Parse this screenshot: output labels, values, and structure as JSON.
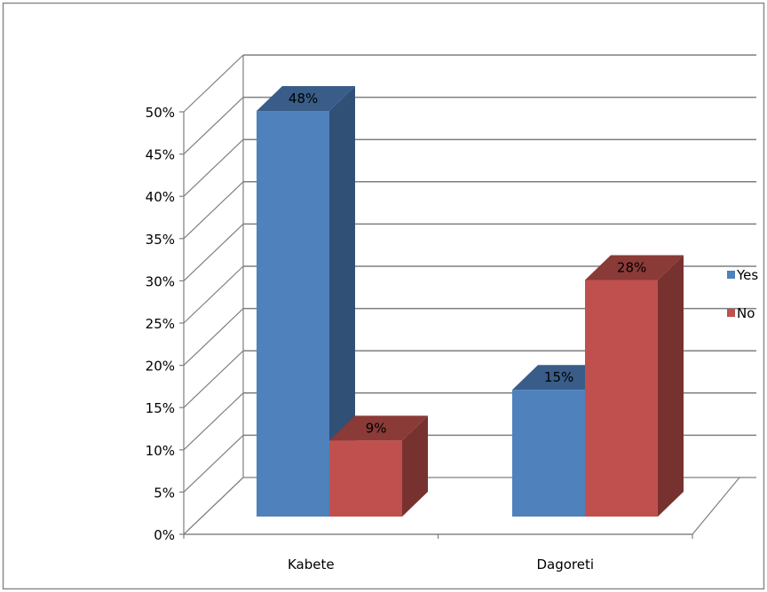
{
  "chart_data": {
    "type": "bar",
    "style": "3d-clustered-column",
    "categories": [
      "Kabete",
      "Dagoreti"
    ],
    "series": [
      {
        "name": "Yes",
        "values": [
          48,
          15
        ],
        "labels": [
          "48%",
          "15%"
        ],
        "color": "#4F81BD"
      },
      {
        "name": "No",
        "values": [
          9,
          28
        ],
        "labels": [
          "9%",
          "28%"
        ],
        "color": "#C0504D"
      }
    ],
    "ylim": [
      0,
      50
    ],
    "yticks": [
      {
        "value": 0,
        "label": "0%"
      },
      {
        "value": 5,
        "label": "5%"
      },
      {
        "value": 10,
        "label": "10%"
      },
      {
        "value": 15,
        "label": "15%"
      },
      {
        "value": 20,
        "label": "20%"
      },
      {
        "value": 25,
        "label": "25%"
      },
      {
        "value": 30,
        "label": "30%"
      },
      {
        "value": 35,
        "label": "35%"
      },
      {
        "value": 40,
        "label": "40%"
      },
      {
        "value": 45,
        "label": "45%"
      },
      {
        "value": 50,
        "label": "50%"
      }
    ],
    "grid": true,
    "legend_position": "right",
    "colors": {
      "frame": "#8C8C8C",
      "grid": "#7F7F7F",
      "text": "#000000"
    }
  }
}
